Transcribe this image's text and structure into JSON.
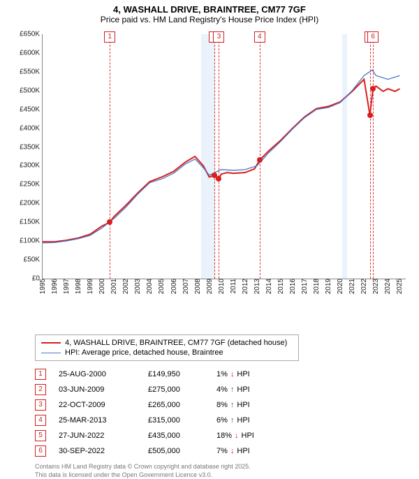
{
  "header": {
    "title": "4, WASHALL DRIVE, BRAINTREE, CM77 7GF",
    "subtitle": "Price paid vs. HM Land Registry's House Price Index (HPI)"
  },
  "chart": {
    "type": "line",
    "background_color": "#ffffff",
    "recession_band_color": "#eaf2fb",
    "xlim": [
      1995,
      2025.5
    ],
    "ylim": [
      0,
      650000
    ],
    "ytick_step": 50000,
    "yticks": [
      "£0",
      "£50K",
      "£100K",
      "£150K",
      "£200K",
      "£250K",
      "£300K",
      "£350K",
      "£400K",
      "£450K",
      "£500K",
      "£550K",
      "£600K",
      "£650K"
    ],
    "xticks": [
      1995,
      1996,
      1997,
      1998,
      1999,
      2000,
      2001,
      2002,
      2003,
      2004,
      2005,
      2006,
      2007,
      2008,
      2009,
      2010,
      2011,
      2012,
      2013,
      2014,
      2015,
      2016,
      2017,
      2018,
      2019,
      2020,
      2021,
      2022,
      2023,
      2024,
      2025
    ],
    "recession_bands": [
      [
        2008.3,
        2009.5
      ],
      [
        2020.15,
        2020.55
      ]
    ],
    "series": [
      {
        "key": "property",
        "label": "4, WASHALL DRIVE, BRAINTREE, CM77 7GF (detached house)",
        "color": "#d81e1e",
        "width": 2,
        "points": [
          [
            1995,
            98000
          ],
          [
            1996,
            98000
          ],
          [
            1997,
            102000
          ],
          [
            1998,
            108000
          ],
          [
            1999,
            118000
          ],
          [
            2000,
            140000
          ],
          [
            2000.65,
            150000
          ],
          [
            2001,
            165000
          ],
          [
            2002,
            195000
          ],
          [
            2003,
            228000
          ],
          [
            2004,
            258000
          ],
          [
            2005,
            270000
          ],
          [
            2006,
            285000
          ],
          [
            2007,
            310000
          ],
          [
            2007.8,
            325000
          ],
          [
            2008.5,
            300000
          ],
          [
            2009,
            270000
          ],
          [
            2009.42,
            275000
          ],
          [
            2009.81,
            265000
          ],
          [
            2010,
            278000
          ],
          [
            2010.5,
            282000
          ],
          [
            2011,
            280000
          ],
          [
            2012,
            282000
          ],
          [
            2012.8,
            292000
          ],
          [
            2013.23,
            315000
          ],
          [
            2014,
            340000
          ],
          [
            2015,
            368000
          ],
          [
            2016,
            400000
          ],
          [
            2017,
            430000
          ],
          [
            2018,
            452000
          ],
          [
            2019,
            458000
          ],
          [
            2020,
            470000
          ],
          [
            2021,
            498000
          ],
          [
            2022,
            530000
          ],
          [
            2022.49,
            435000
          ],
          [
            2022.75,
            505000
          ],
          [
            2023,
            512000
          ],
          [
            2023.6,
            498000
          ],
          [
            2024,
            505000
          ],
          [
            2024.6,
            498000
          ],
          [
            2025,
            505000
          ]
        ]
      },
      {
        "key": "hpi",
        "label": "HPI: Average price, detached house, Braintree",
        "color": "#4a74c9",
        "width": 1.3,
        "points": [
          [
            1995,
            95000
          ],
          [
            1996,
            96000
          ],
          [
            1997,
            100000
          ],
          [
            1998,
            106000
          ],
          [
            1999,
            115000
          ],
          [
            2000,
            135000
          ],
          [
            2001,
            160000
          ],
          [
            2002,
            190000
          ],
          [
            2003,
            225000
          ],
          [
            2004,
            255000
          ],
          [
            2005,
            265000
          ],
          [
            2006,
            280000
          ],
          [
            2007,
            305000
          ],
          [
            2007.8,
            318000
          ],
          [
            2008.5,
            295000
          ],
          [
            2009,
            275000
          ],
          [
            2010,
            290000
          ],
          [
            2011,
            288000
          ],
          [
            2012,
            290000
          ],
          [
            2013,
            300000
          ],
          [
            2014,
            335000
          ],
          [
            2015,
            365000
          ],
          [
            2016,
            398000
          ],
          [
            2017,
            428000
          ],
          [
            2018,
            450000
          ],
          [
            2019,
            455000
          ],
          [
            2020,
            468000
          ],
          [
            2021,
            500000
          ],
          [
            2022,
            540000
          ],
          [
            2022.7,
            555000
          ],
          [
            2023,
            540000
          ],
          [
            2024,
            530000
          ],
          [
            2025,
            540000
          ]
        ]
      }
    ],
    "markers": [
      {
        "n": "1",
        "x": 2000.65,
        "y": 149950
      },
      {
        "n": "2",
        "x": 2009.42,
        "y": 275000
      },
      {
        "n": "3",
        "x": 2009.81,
        "y": 265000
      },
      {
        "n": "4",
        "x": 2013.23,
        "y": 315000
      },
      {
        "n": "5",
        "x": 2022.49,
        "y": 435000
      },
      {
        "n": "6",
        "x": 2022.75,
        "y": 505000
      }
    ]
  },
  "legend": {
    "items": [
      {
        "color": "#d81e1e",
        "width": 2,
        "label": "4, WASHALL DRIVE, BRAINTREE, CM77 7GF (detached house)"
      },
      {
        "color": "#4a74c9",
        "width": 1.3,
        "label": "HPI: Average price, detached house, Braintree"
      }
    ]
  },
  "sales": [
    {
      "n": "1",
      "date": "25-AUG-2000",
      "price": "£149,950",
      "delta": "1%",
      "dir": "down",
      "vs": "HPI"
    },
    {
      "n": "2",
      "date": "03-JUN-2009",
      "price": "£275,000",
      "delta": "4%",
      "dir": "up",
      "vs": "HPI"
    },
    {
      "n": "3",
      "date": "22-OCT-2009",
      "price": "£265,000",
      "delta": "8%",
      "dir": "up",
      "vs": "HPI"
    },
    {
      "n": "4",
      "date": "25-MAR-2013",
      "price": "£315,000",
      "delta": "6%",
      "dir": "up",
      "vs": "HPI"
    },
    {
      "n": "5",
      "date": "27-JUN-2022",
      "price": "£435,000",
      "delta": "18%",
      "dir": "down",
      "vs": "HPI"
    },
    {
      "n": "6",
      "date": "30-SEP-2022",
      "price": "£505,000",
      "delta": "7%",
      "dir": "down",
      "vs": "HPI"
    }
  ],
  "attribution": {
    "line1": "Contains HM Land Registry data © Crown copyright and database right 2025.",
    "line2": "This data is licensed under the Open Government Licence v3.0."
  },
  "colors": {
    "marker_border": "#d02020",
    "arrow_up": "#1a8a1a",
    "arrow_down": "#c01818"
  }
}
